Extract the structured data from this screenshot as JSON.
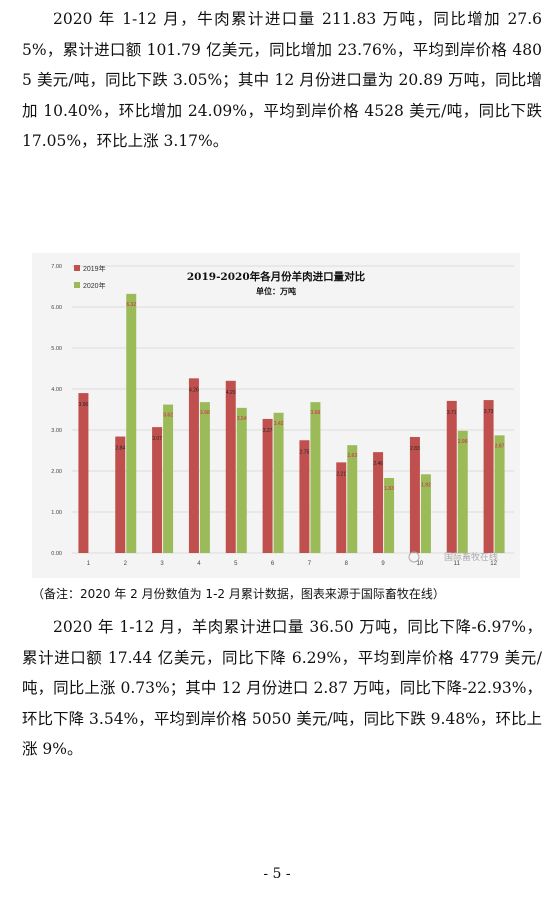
{
  "paragraph1": "2020 年 1-12 月，牛肉累计进口量 211.83 万吨，同比增加 27.65%，累计进口额 101.79 亿美元，同比增加 23.76%，平均到岸价格 4805 美元/吨，同比下跌 3.05%；其中 12 月份进口量为 20.89 万吨，同比增加 10.40%，环比增加 24.09%，平均到岸价格 4528 美元/吨，同比下跌 17.05%，环比上涨 3.17%。",
  "chart_data": {
    "type": "bar",
    "title": "2019-2020年各月份羊肉进口量对比",
    "subtitle": "单位：万吨",
    "categories": [
      "1",
      "2",
      "3",
      "4",
      "5",
      "6",
      "7",
      "8",
      "9",
      "10",
      "11",
      "12"
    ],
    "series": [
      {
        "name": "2019年",
        "color": "#c0504d",
        "values": [
          3.9,
          2.84,
          3.07,
          4.26,
          4.2,
          3.27,
          2.75,
          2.21,
          2.46,
          2.83,
          3.71,
          3.73
        ],
        "labels": [
          "3.90",
          "2.84",
          "3.07",
          "4.26",
          "4.20",
          "3.27",
          "2.75",
          "2.21",
          "2.46",
          "2.83",
          "3.71",
          "3.73"
        ]
      },
      {
        "name": "2020年",
        "color": "#9bbb59",
        "values": [
          null,
          6.32,
          3.62,
          3.68,
          3.54,
          3.42,
          3.68,
          2.63,
          1.83,
          1.92,
          2.98,
          2.87
        ],
        "labels": [
          "",
          "6.32",
          "3.62",
          "3.68",
          "3.54",
          "3.42",
          "3.68",
          "2.63",
          "1.83",
          "1.92",
          "2.98",
          "2.87"
        ]
      }
    ],
    "yticks": [
      "0.00",
      "1.00",
      "2.00",
      "3.00",
      "4.00",
      "5.00",
      "6.00",
      "7.00"
    ],
    "ylim": [
      0,
      7
    ],
    "legend_position": "top-left",
    "grid": true,
    "watermark": "国际畜牧在线"
  },
  "note": "（备注：2020 年 2 月份数值为 1-2 月累计数据，图表来源于国际畜牧在线）",
  "paragraph2": "2020 年 1-12 月，羊肉累计进口量 36.50 万吨，同比下降-6.97%，累计进口额 17.44 亿美元，同比下降 6.29%，平均到岸价格 4779 美元/吨，同比上涨 0.73%；其中 12 月份进口 2.87 万吨，同比下降-22.93%，环比下降 3.54%，平均到岸价格 5050 美元/吨，同比下跌 9.48%，环比上涨 9%。",
  "page_number": "- 5 -"
}
